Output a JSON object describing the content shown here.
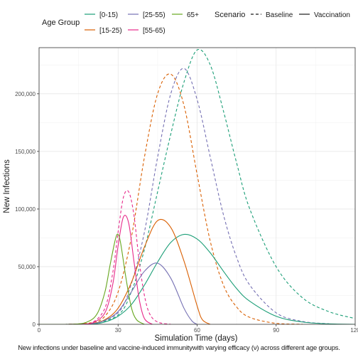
{
  "chart_data": {
    "type": "line",
    "title": "",
    "xlabel": "Simulation Time (days)",
    "ylabel": "New Infections",
    "caption": "New infections under baseline and vaccine-induced immunitywith varying efficacy (ν) across different age groups.",
    "xlim": [
      0,
      120
    ],
    "ylim": [
      0,
      240000
    ],
    "x_ticks": [
      0,
      30,
      60,
      90,
      120
    ],
    "x_tick_labels": [
      "0",
      "30",
      "60",
      "90",
      "120"
    ],
    "y_ticks": [
      0,
      50000,
      100000,
      150000,
      200000
    ],
    "y_tick_labels": [
      "0",
      "50,000",
      "100,000",
      "150,000",
      "200,000"
    ],
    "grid": true,
    "legend_position": "top",
    "legend": {
      "age_group_title": "Age Group",
      "age_groups": [
        {
          "label": "[0-15)",
          "color": "#1b9e77"
        },
        {
          "label": "[15-25)",
          "color": "#d95f02"
        },
        {
          "label": "[25-55)",
          "color": "#7570b3"
        },
        {
          "label": "[55-65)",
          "color": "#e7298a"
        },
        {
          "label": "65+",
          "color": "#66a61e"
        }
      ],
      "scenario_title": "Scenario",
      "scenarios": [
        {
          "label": "Baseline",
          "linetype": "dashed"
        },
        {
          "label": "Vaccination",
          "linetype": "solid"
        }
      ]
    },
    "series": [
      {
        "age_group": "[0-15)",
        "scenario": "Baseline",
        "x": [
          0,
          10,
          20,
          30,
          35,
          40,
          45,
          50,
          55,
          60,
          65,
          70,
          75,
          80,
          90,
          100,
          110,
          120
        ],
        "y": [
          0,
          0,
          400,
          8000,
          28000,
          65000,
          115000,
          165000,
          210000,
          238000,
          225000,
          185000,
          140000,
          100000,
          50000,
          23000,
          11000,
          5000
        ]
      },
      {
        "age_group": "[15-25)",
        "scenario": "Baseline",
        "x": [
          0,
          10,
          20,
          25,
          30,
          35,
          40,
          45,
          50,
          55,
          60,
          65,
          70,
          75,
          80,
          90,
          100
        ],
        "y": [
          0,
          0,
          1500,
          7000,
          28000,
          75000,
          145000,
          200000,
          217000,
          190000,
          130000,
          72000,
          34000,
          15000,
          6000,
          800,
          100
        ]
      },
      {
        "age_group": "[25-55)",
        "scenario": "Baseline",
        "x": [
          0,
          10,
          20,
          30,
          35,
          40,
          45,
          50,
          55,
          60,
          65,
          70,
          75,
          80,
          90,
          100,
          110
        ],
        "y": [
          0,
          0,
          500,
          10000,
          35000,
          80000,
          145000,
          200000,
          222000,
          195000,
          145000,
          95000,
          58000,
          34000,
          10000,
          2500,
          500
        ]
      },
      {
        "age_group": "[55-65)",
        "scenario": "Baseline",
        "x": [
          0,
          15,
          20,
          25,
          28,
          30,
          32,
          34,
          36,
          38,
          40,
          42,
          45,
          50
        ],
        "y": [
          0,
          0,
          1200,
          14000,
          45000,
          80000,
          110000,
          115000,
          95000,
          55000,
          25000,
          9000,
          2000,
          0
        ]
      },
      {
        "age_group": "[0-15)",
        "scenario": "Vaccination",
        "x": [
          0,
          10,
          20,
          25,
          30,
          35,
          40,
          45,
          50,
          55,
          60,
          65,
          70,
          75,
          80,
          90,
          100,
          110,
          120
        ],
        "y": [
          0,
          0,
          300,
          2000,
          7000,
          17000,
          34000,
          54000,
          71000,
          78000,
          74000,
          62000,
          46000,
          31000,
          20000,
          7000,
          2000,
          400,
          0
        ]
      },
      {
        "age_group": "[15-25)",
        "scenario": "Vaccination",
        "x": [
          0,
          10,
          20,
          25,
          30,
          35,
          40,
          45,
          50,
          55,
          60,
          62,
          65
        ],
        "y": [
          0,
          0,
          800,
          4000,
          14000,
          36000,
          67000,
          90000,
          84000,
          55000,
          16000,
          4000,
          0
        ]
      },
      {
        "age_group": "[25-55)",
        "scenario": "Vaccination",
        "x": [
          0,
          10,
          20,
          25,
          30,
          35,
          40,
          45,
          50,
          55,
          58,
          60
        ],
        "y": [
          0,
          0,
          600,
          3500,
          11000,
          28000,
          46000,
          53000,
          40000,
          14000,
          3000,
          0
        ]
      },
      {
        "age_group": "[55-65)",
        "scenario": "Vaccination",
        "x": [
          0,
          15,
          20,
          25,
          28,
          30,
          32,
          34,
          36,
          38,
          40,
          43
        ],
        "y": [
          0,
          0,
          1000,
          10000,
          35000,
          68000,
          93000,
          88000,
          55000,
          22000,
          5000,
          0
        ]
      },
      {
        "age_group": "65+",
        "scenario": "Vaccination",
        "x": [
          0,
          12,
          18,
          22,
          25,
          27,
          29,
          30,
          31,
          33,
          35,
          37,
          40
        ],
        "y": [
          0,
          0,
          1800,
          9000,
          28000,
          52000,
          74000,
          78000,
          70000,
          40000,
          15000,
          4000,
          0
        ]
      }
    ]
  }
}
